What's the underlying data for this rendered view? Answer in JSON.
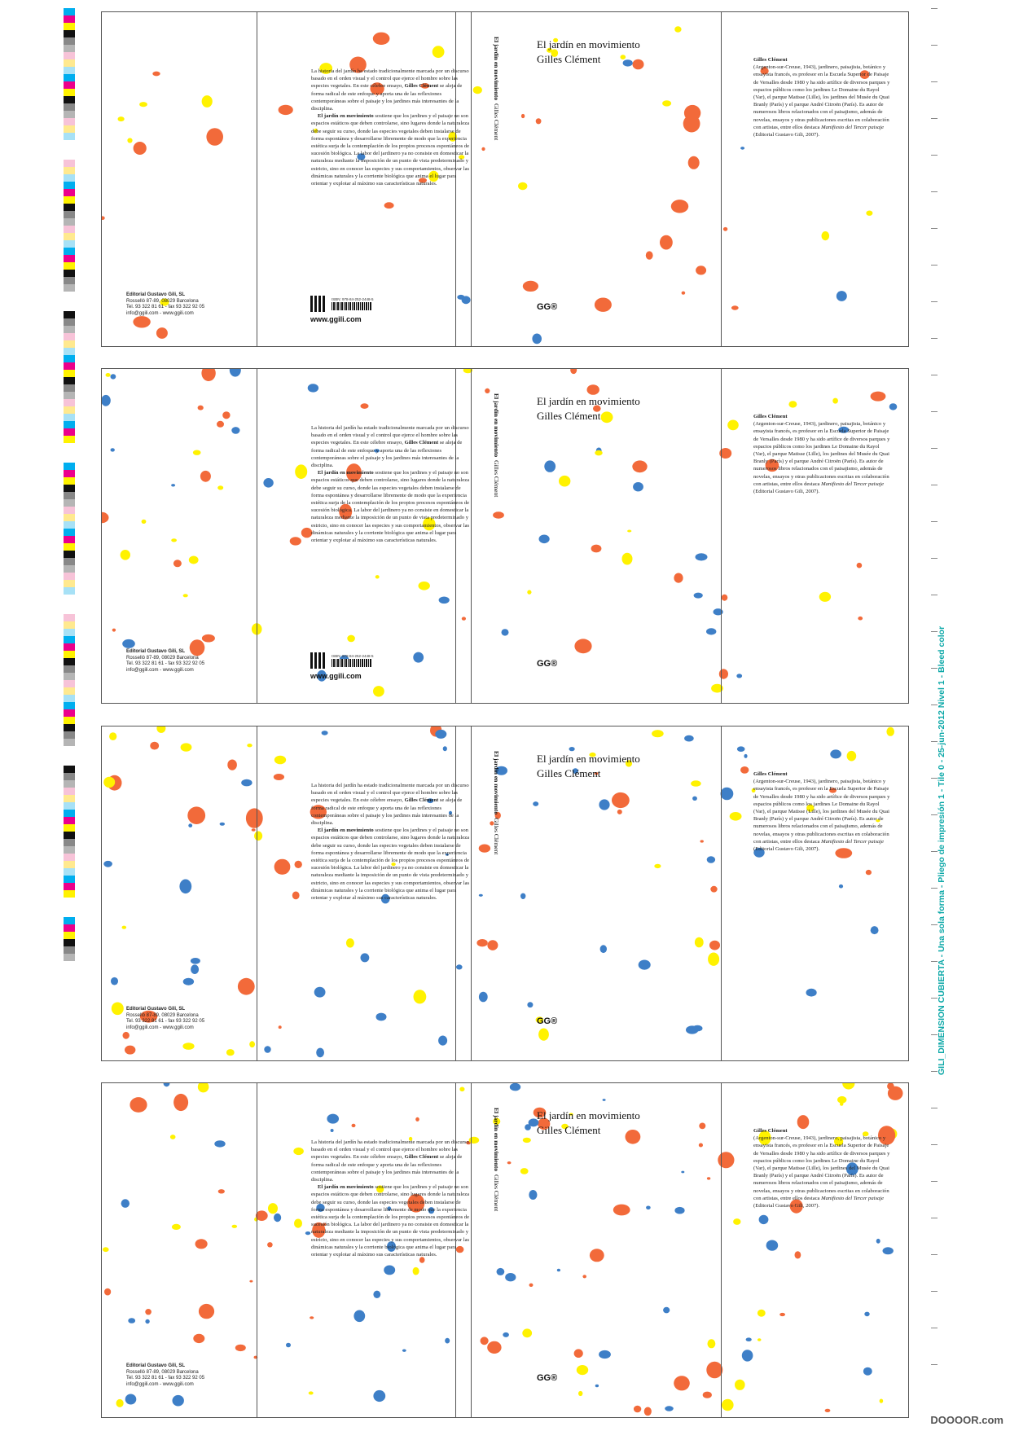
{
  "slug_text": "GILI_DIMENSION CUBIERTA - Una sola forma - Pliego de impresión 1 - Tile 0 - 25-jun-2012 Nivel 1 - Bleed color",
  "watermark": "DOOOOR.com",
  "colors": {
    "orange": "#f26a3a",
    "yellow": "#fff200",
    "blue": "#3e7fc7",
    "cyan": "#00aeef",
    "magenta": "#ec008c",
    "black": "#111111"
  },
  "colorbar_patches": [
    "#00aeef",
    "#ec008c",
    "#fff200",
    "#111111",
    "#888888",
    "#b5b5b5",
    "#f7c3d8",
    "#ffe98f",
    "#a7e1f6"
  ],
  "cover": {
    "publisher_name": "Editorial Gustavo Gili, SL",
    "publisher_address": "Rosselló 87-89, 08029 Barcelona",
    "publisher_phone": "Tel. 93 322 81 61 - fax 93 322 92 05",
    "publisher_email": "info@ggili.com - www.ggili.com",
    "blurb_p1_a": "La historia del jardín ha estado tradicionalmente marcada por un discurso basado en el orden visual y el control que ejerce el hombre sobre las especies vegetales. En este célebre ensayo, ",
    "blurb_p1_name": "Gilles Clément",
    "blurb_p1_b": " se aleja de forma radical de este enfoque y aporta una de las reflexiones contemporáneas sobre el paisaje y los jardines más interesantes de la disciplina.",
    "blurb_p2_title": "El jardín en movimiento",
    "blurb_p2_rest": " sostiene que los jardines y el paisaje no son espacios estáticos que deben controlarse, sino lugares donde la naturaleza debe seguir su curso, donde las especies vegetales deben instalarse de forma espontánea y desarrollarse libremente de modo que la experiencia estética surja de la contemplación de los propios procesos espontáneos de sucesión biológica. La labor del jardinero ya no consiste en domesticar la naturaleza mediante la imposición de un punto de vista predeterminado y estricto, sino en conocer las especies y sus comportamientos, observar las dinámicas naturales y la corriente biológica que anima el lugar para orientar y explotar al máximo sus características naturales.",
    "isbn": "ISBN: 978-84-252-2448-5",
    "website": "www.ggili.com",
    "spine_title": "El jardín en movimiento",
    "spine_author": "Gilles Clément",
    "title": "El jardín en movimiento",
    "author": "Gilles Clément",
    "logo": "GG®",
    "bio_name": "Gilles Clément",
    "bio_text": "(Argenton-sur-Creuse, 1943), jardinero, paisajista, botánico y ensayista francés, es profesor en la Escuela Superior de Paisaje de Versalles desde 1980 y ha sido artífice de diversos parques y espacios públicos como los jardines Le Domaine du Rayol (Var), el parque Matisse (Lille), los jardines del Musée du Quai Branly (París) y el parque André Citroën (París). Es autor de numerosos libros relacionados con el paisajismo, además de novelas, ensayos y otras publicaciones escritas en colaboración con artistas, entre ellos destaca ",
    "bio_book": "Manifiesto del Tercer paisaje",
    "bio_end": " (Editorial Gustavo Gili, 2007)."
  }
}
